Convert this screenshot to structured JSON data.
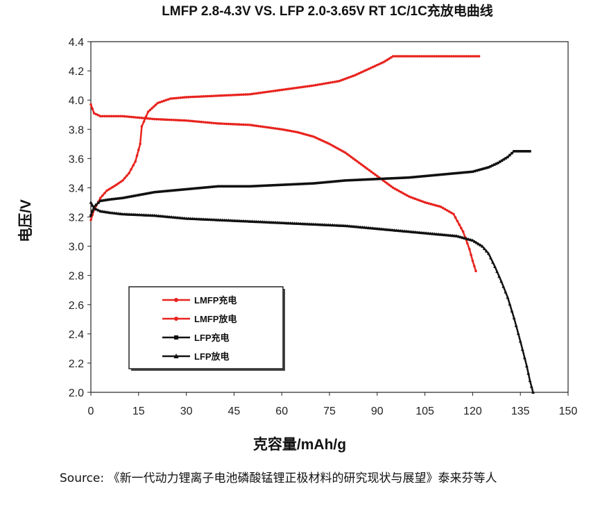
{
  "chart_data": {
    "type": "line",
    "title": "LMFP 2.8-4.3V VS. LFP 2.0-3.65V RT 1C/1C充放电曲线",
    "xlabel": "克容量/mAh/g",
    "ylabel": "电压/V",
    "xlim": [
      0,
      150
    ],
    "ylim": [
      2.0,
      4.4
    ],
    "xticks": [
      "0",
      "15",
      "30",
      "45",
      "60",
      "75",
      "90",
      "105",
      "120",
      "135",
      "150"
    ],
    "yticks": [
      "2.0",
      "2.2",
      "2.4",
      "2.6",
      "2.8",
      "3.0",
      "3.2",
      "3.4",
      "3.6",
      "3.8",
      "4.0",
      "4.2",
      "4.4"
    ],
    "grid": false,
    "legend_position": "bottom-left",
    "series": [
      {
        "name": "LMFP充电",
        "color": "#e8231e",
        "marker": "circle",
        "points": [
          [
            0,
            3.18
          ],
          [
            1,
            3.25
          ],
          [
            3,
            3.33
          ],
          [
            5,
            3.38
          ],
          [
            8,
            3.42
          ],
          [
            10,
            3.45
          ],
          [
            12,
            3.5
          ],
          [
            14,
            3.58
          ],
          [
            15.5,
            3.7
          ],
          [
            16,
            3.82
          ],
          [
            18,
            3.92
          ],
          [
            21,
            3.98
          ],
          [
            25,
            4.01
          ],
          [
            30,
            4.02
          ],
          [
            40,
            4.03
          ],
          [
            50,
            4.04
          ],
          [
            60,
            4.07
          ],
          [
            70,
            4.1
          ],
          [
            78,
            4.13
          ],
          [
            83,
            4.17
          ],
          [
            88,
            4.22
          ],
          [
            92,
            4.26
          ],
          [
            95,
            4.3
          ],
          [
            100,
            4.3
          ],
          [
            110,
            4.3
          ],
          [
            120,
            4.3
          ],
          [
            122,
            4.3
          ]
        ]
      },
      {
        "name": "LMFP放电",
        "color": "#e8231e",
        "marker": "circle",
        "points": [
          [
            0,
            3.97
          ],
          [
            1,
            3.91
          ],
          [
            3,
            3.89
          ],
          [
            10,
            3.89
          ],
          [
            20,
            3.87
          ],
          [
            30,
            3.86
          ],
          [
            40,
            3.84
          ],
          [
            50,
            3.83
          ],
          [
            60,
            3.8
          ],
          [
            65,
            3.78
          ],
          [
            70,
            3.75
          ],
          [
            75,
            3.7
          ],
          [
            80,
            3.64
          ],
          [
            85,
            3.56
          ],
          [
            90,
            3.48
          ],
          [
            95,
            3.4
          ],
          [
            100,
            3.34
          ],
          [
            105,
            3.3
          ],
          [
            110,
            3.27
          ],
          [
            114,
            3.22
          ],
          [
            117,
            3.1
          ],
          [
            119,
            2.98
          ],
          [
            120,
            2.9
          ],
          [
            121,
            2.83
          ]
        ]
      },
      {
        "name": "LFP充电",
        "color": "#111111",
        "marker": "square",
        "points": [
          [
            0,
            3.21
          ],
          [
            1,
            3.27
          ],
          [
            3,
            3.31
          ],
          [
            6,
            3.32
          ],
          [
            10,
            3.33
          ],
          [
            15,
            3.35
          ],
          [
            20,
            3.37
          ],
          [
            25,
            3.38
          ],
          [
            30,
            3.39
          ],
          [
            40,
            3.41
          ],
          [
            50,
            3.41
          ],
          [
            60,
            3.42
          ],
          [
            70,
            3.43
          ],
          [
            80,
            3.45
          ],
          [
            90,
            3.46
          ],
          [
            100,
            3.47
          ],
          [
            110,
            3.49
          ],
          [
            120,
            3.51
          ],
          [
            125,
            3.54
          ],
          [
            128,
            3.57
          ],
          [
            131,
            3.61
          ],
          [
            133,
            3.65
          ],
          [
            135,
            3.65
          ],
          [
            138,
            3.65
          ]
        ]
      },
      {
        "name": "LFP放电",
        "color": "#111111",
        "marker": "triangle",
        "points": [
          [
            0,
            3.3
          ],
          [
            1,
            3.26
          ],
          [
            3,
            3.24
          ],
          [
            6,
            3.23
          ],
          [
            10,
            3.22
          ],
          [
            20,
            3.21
          ],
          [
            30,
            3.19
          ],
          [
            40,
            3.18
          ],
          [
            50,
            3.17
          ],
          [
            60,
            3.16
          ],
          [
            70,
            3.15
          ],
          [
            80,
            3.14
          ],
          [
            90,
            3.12
          ],
          [
            100,
            3.1
          ],
          [
            110,
            3.08
          ],
          [
            115,
            3.07
          ],
          [
            120,
            3.04
          ],
          [
            123,
            3.0
          ],
          [
            125,
            2.95
          ],
          [
            127,
            2.86
          ],
          [
            129,
            2.76
          ],
          [
            131,
            2.65
          ],
          [
            133,
            2.51
          ],
          [
            135,
            2.35
          ],
          [
            137,
            2.18
          ],
          [
            138,
            2.08
          ],
          [
            139,
            2.0
          ]
        ]
      }
    ]
  },
  "source": {
    "text": "Source: 《新一代动力锂离子电池磷酸锰锂正极材料的研究现状与展望》泰来芬等人"
  }
}
